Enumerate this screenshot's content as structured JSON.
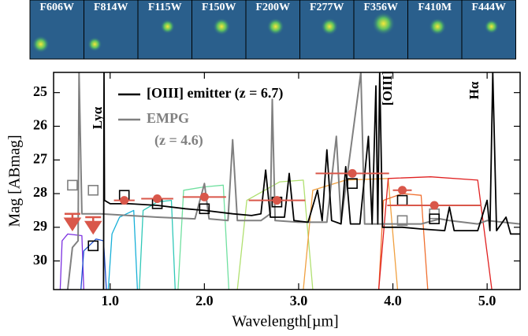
{
  "chart_data": {
    "type": "sed",
    "xlabel": "Wavelength[µm]",
    "ylabel": "Mag [ABmag]",
    "xlim": [
      0.4,
      5.35
    ],
    "ylim": [
      30.85,
      24.4
    ],
    "xticks": [
      {
        "value": 1,
        "label": "1.0"
      },
      {
        "value": 2,
        "label": "2.0"
      },
      {
        "value": 3,
        "label": "3.0"
      },
      {
        "value": 4,
        "label": "4.0"
      },
      {
        "value": 5,
        "label": "5.0"
      }
    ],
    "yticks": [
      25,
      26,
      27,
      28,
      29,
      30
    ],
    "annotations": [
      "Lyα",
      "[OIII]",
      "Hα"
    ],
    "series": [
      {
        "name": "[OIII] emitter (z = 6.7)",
        "color": "#000000",
        "x": [
          0.93,
          0.935,
          0.94,
          1.0,
          1.2,
          1.5,
          1.8,
          2.0,
          2.3,
          2.5,
          2.6,
          2.65,
          2.7,
          2.85,
          2.9,
          2.95,
          3.1,
          3.2,
          3.25,
          3.3,
          3.35,
          3.45,
          3.5,
          3.55,
          3.65,
          3.74,
          3.78,
          3.82,
          3.84,
          3.86,
          3.89,
          4.1,
          4.3,
          4.55,
          4.6,
          4.65,
          4.9,
          5.0,
          5.03,
          5.06,
          5.1,
          5.2,
          5.25,
          5.35
        ],
        "values": [
          30.85,
          24.4,
          28.2,
          28.3,
          28.3,
          28.35,
          28.45,
          28.5,
          28.6,
          28.65,
          28.6,
          27.3,
          28.7,
          28.7,
          27.4,
          28.8,
          28.85,
          27.9,
          28.8,
          26.7,
          28.8,
          28.9,
          27.2,
          28.9,
          28.9,
          26.3,
          28.9,
          24.8,
          28.9,
          24.4,
          29.0,
          29.0,
          29.05,
          29.1,
          28.4,
          29.1,
          29.1,
          28.2,
          29.1,
          24.4,
          29.1,
          28.7,
          29.2,
          29.2
        ]
      },
      {
        "name": "EMPG",
        "subname": "(z = 4.6)",
        "color": "#808080",
        "x": [
          0.55,
          0.6,
          0.66,
          0.67,
          0.7,
          0.9,
          1.2,
          1.5,
          1.9,
          2.0,
          2.05,
          2.25,
          2.3,
          2.35,
          2.6,
          2.7,
          2.72,
          2.75,
          3.0,
          3.3,
          3.4,
          3.45,
          3.66,
          3.7,
          4.3,
          4.5,
          4.6,
          4.9,
          5.0,
          5.35
        ],
        "values": [
          30.85,
          29.6,
          29.4,
          24.4,
          28.6,
          28.6,
          28.65,
          28.7,
          28.75,
          27.7,
          28.75,
          28.8,
          26.4,
          28.8,
          28.8,
          28.6,
          25.2,
          28.8,
          28.85,
          28.85,
          26.3,
          28.85,
          24.4,
          28.9,
          28.9,
          28.75,
          28.8,
          28.9,
          28.8,
          28.9
        ]
      }
    ],
    "filters": [
      {
        "name": "F606W",
        "color": "#7b2fe0",
        "x": [
          0.47,
          0.49,
          0.55,
          0.7,
          0.72
        ],
        "values": [
          30.85,
          29.4,
          29.2,
          29.25,
          30.85
        ]
      },
      {
        "name": "F814W",
        "color": "#2050d0",
        "x": [
          0.69,
          0.72,
          0.85,
          0.93,
          0.96
        ],
        "values": [
          30.85,
          29.7,
          29.35,
          29.4,
          30.85
        ]
      },
      {
        "name": "F115W",
        "color": "#18b0d8",
        "x": [
          0.98,
          1.02,
          1.1,
          1.25,
          1.29
        ],
        "values": [
          30.85,
          29.2,
          28.7,
          28.5,
          30.85
        ]
      },
      {
        "name": "F150W",
        "color": "#30c8b8",
        "x": [
          1.31,
          1.35,
          1.5,
          1.65,
          1.69
        ],
        "values": [
          30.85,
          28.5,
          28.25,
          28.2,
          30.85
        ]
      },
      {
        "name": "F200W",
        "color": "#70e0a0",
        "x": [
          1.72,
          1.78,
          2.0,
          2.2,
          2.26
        ],
        "values": [
          30.85,
          27.9,
          27.8,
          27.75,
          30.85
        ]
      },
      {
        "name": "F277W",
        "color": "#b0e070",
        "x": [
          2.35,
          2.45,
          2.8,
          3.05,
          3.15
        ],
        "values": [
          30.85,
          28.2,
          27.65,
          27.6,
          30.85
        ]
      },
      {
        "name": "F356W",
        "color": "#f0a040",
        "x": [
          3.05,
          3.15,
          3.5,
          3.95,
          4.05
        ],
        "values": [
          30.85,
          27.9,
          27.6,
          27.55,
          30.85
        ]
      },
      {
        "name": "F410M",
        "color": "#f07030",
        "x": [
          3.85,
          3.9,
          4.1,
          4.3,
          4.37
        ],
        "values": [
          30.85,
          28.2,
          28.0,
          28.05,
          30.85
        ]
      },
      {
        "name": "F444W",
        "color": "#e02020",
        "x": [
          3.85,
          3.95,
          4.4,
          4.9,
          5.05
        ],
        "values": [
          30.85,
          27.55,
          27.5,
          27.6,
          30.85
        ]
      }
    ],
    "photometry": {
      "color": "#d9574a",
      "x": [
        1.15,
        1.5,
        2.0,
        2.77,
        3.57,
        4.1,
        4.44
      ],
      "values": [
        28.2,
        28.15,
        28.1,
        28.2,
        27.4,
        27.9,
        28.35
      ],
      "xerr": [
        0.11,
        0.17,
        0.23,
        0.3,
        0.39,
        0.1,
        0.5
      ]
    },
    "upper_limits": {
      "color": "#d9574a",
      "x": [
        0.6,
        0.82
      ],
      "values": [
        28.6,
        28.7
      ]
    },
    "model_emitter": {
      "color": "#000000",
      "x": [
        0.82,
        1.15,
        1.5,
        2.0,
        2.77,
        3.57,
        4.1,
        4.44
      ],
      "values": [
        29.55,
        28.05,
        28.3,
        28.45,
        28.25,
        27.7,
        28.2,
        28.75
      ]
    },
    "model_empg": {
      "color": "#808080",
      "x": [
        0.6,
        0.82,
        4.1,
        4.44
      ],
      "values": [
        27.75,
        27.9,
        28.8,
        28.6
      ]
    }
  }
}
